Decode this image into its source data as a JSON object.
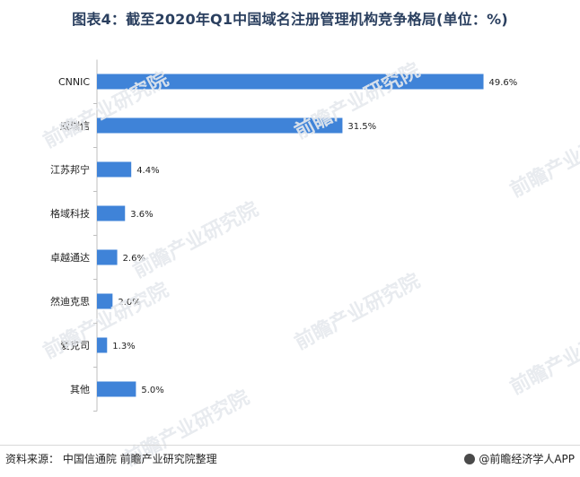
{
  "chart_data": {
    "type": "bar",
    "orientation": "horizontal",
    "title": "图表4：截至2020年Q1中国域名注册管理机构竞争格局(单位：%)",
    "categories": [
      "CNNIC",
      "威瑞信",
      "江苏邦宁",
      "格域科技",
      "卓越通达",
      "然迪克思",
      "爱克司",
      "其他"
    ],
    "values": [
      49.6,
      31.5,
      4.4,
      3.6,
      2.6,
      2.0,
      1.3,
      5.0
    ],
    "value_labels": [
      "49.6%",
      "31.5%",
      "4.4%",
      "3.6%",
      "2.6%",
      "2.0%",
      "1.3%",
      "5.0%"
    ],
    "xlim": [
      0,
      50
    ],
    "grid": false,
    "legend": "none",
    "bar_color": "#3f83d8"
  },
  "footer": {
    "source": "资料来源： 中国信通院   前瞻产业研究院整理",
    "brand": "@前瞻经济学人APP"
  },
  "watermark": {
    "text": "前瞻产业研究院"
  }
}
